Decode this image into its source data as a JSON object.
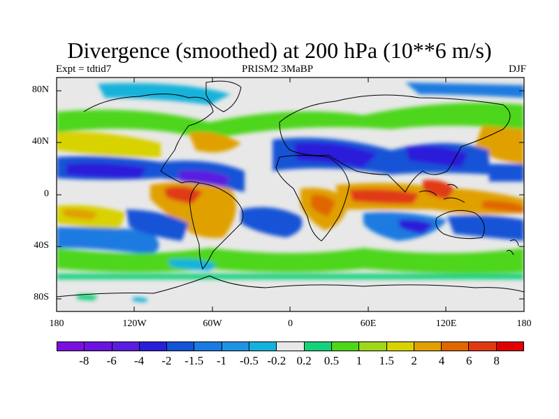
{
  "header": {
    "title": "Divergence (smoothed) at 200 hPa (10**6 m/s)",
    "expt": "Expt = tdtid7",
    "center_label": "PRISM2    3MaBP",
    "season": "DJF"
  },
  "map": {
    "projection": "cylindrical-equidistant",
    "lon_range": [
      -180,
      180
    ],
    "lat_range": [
      -90,
      90
    ],
    "coastlines": true,
    "y_ticks": [
      {
        "lat": 80,
        "label": "80N"
      },
      {
        "lat": 40,
        "label": "40N"
      },
      {
        "lat": 0,
        "label": "0"
      },
      {
        "lat": -40,
        "label": "40S"
      },
      {
        "lat": -80,
        "label": "80S"
      }
    ],
    "x_ticks": [
      {
        "lon": -180,
        "label": "180"
      },
      {
        "lon": -120,
        "label": "120W"
      },
      {
        "lon": -60,
        "label": "60W"
      },
      {
        "lon": 0,
        "label": "0"
      },
      {
        "lon": 60,
        "label": "60E"
      },
      {
        "lon": 120,
        "label": "120E"
      },
      {
        "lon": 180,
        "label": "180"
      }
    ]
  },
  "colorbar": {
    "colors": [
      "#7b0fe0",
      "#6a14e0",
      "#5a1ee0",
      "#2a1fd9",
      "#1452d6",
      "#1a7ae0",
      "#1e93e2",
      "#14b2da",
      "#e8e8e8",
      "#14d27a",
      "#4ed61a",
      "#9ed61a",
      "#d8d200",
      "#e0a000",
      "#e06600",
      "#e03a14",
      "#e00000"
    ],
    "labels": [
      "-8",
      "-6",
      "-4",
      "-2",
      "-1.5",
      "-1",
      "-0.5",
      "-0.2",
      "0.2",
      "0.5",
      "1",
      "1.5",
      "2",
      "4",
      "6",
      "8"
    ]
  }
}
